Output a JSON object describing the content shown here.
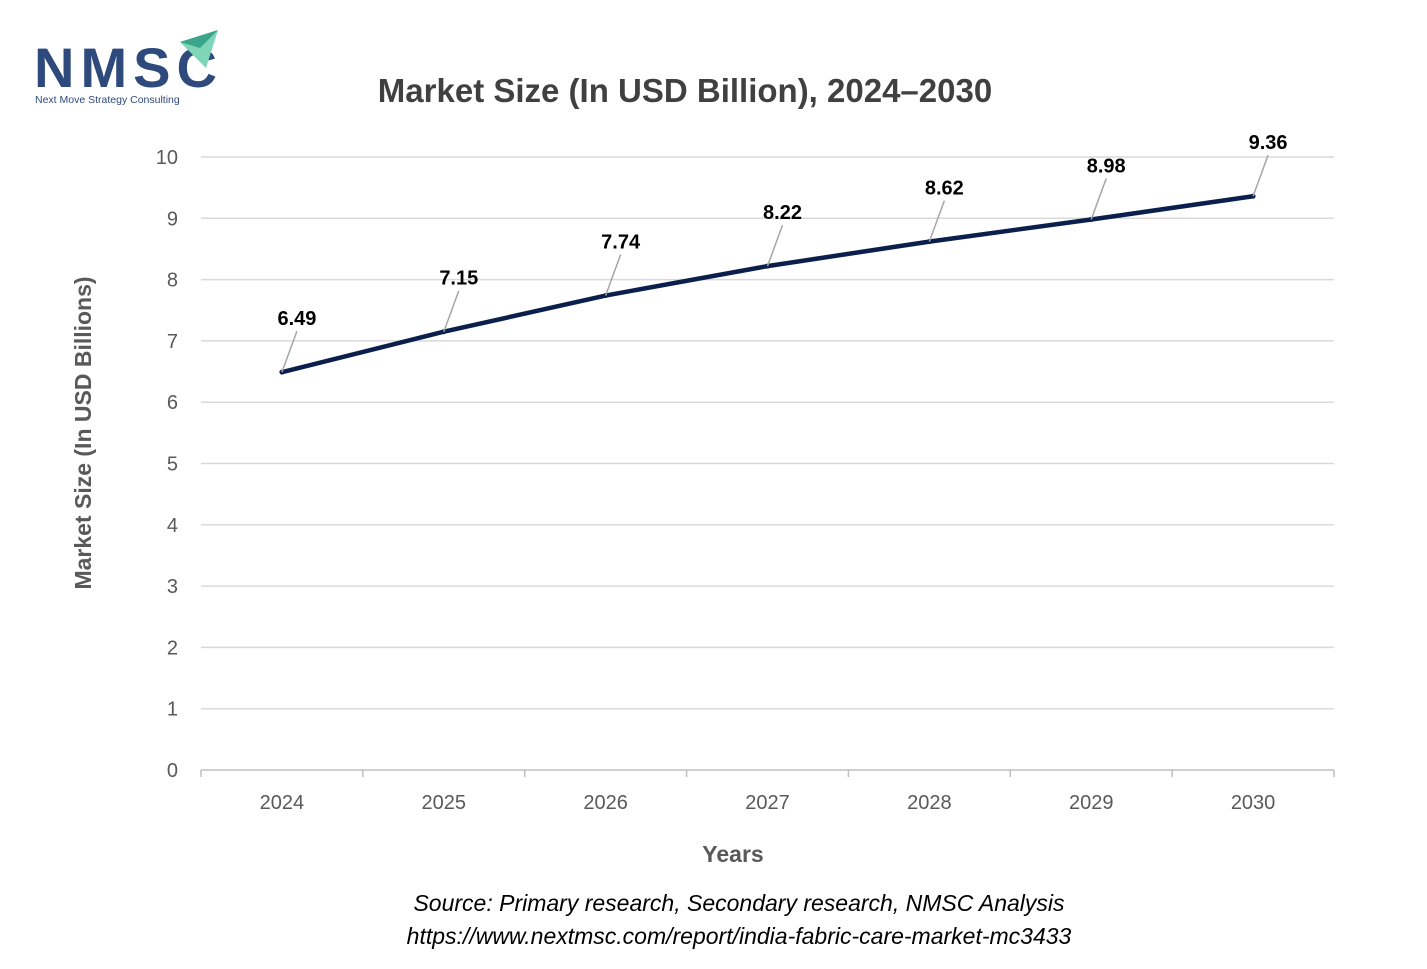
{
  "logo": {
    "text": "NMSC",
    "tagline": "Next Move Strategy Consulting",
    "colors": {
      "text": "#2e4a7d",
      "arrow_light": "#7fd6b6",
      "arrow_dark": "#3aa58a"
    }
  },
  "chart_data": {
    "type": "line",
    "title": "Market Size (In USD Billion), 2024–2030",
    "xlabel": "Years",
    "ylabel": "Market Size (In USD Billions)",
    "categories": [
      "2024",
      "2025",
      "2026",
      "2027",
      "2028",
      "2029",
      "2030"
    ],
    "series": [
      {
        "values": [
          6.49,
          7.15,
          7.74,
          8.22,
          8.62,
          8.98,
          9.36
        ],
        "color": "#0b1f4d"
      }
    ],
    "data_labels": [
      "6.49",
      "7.15",
      "7.74",
      "8.22",
      "8.62",
      "8.98",
      "9.36"
    ],
    "ylim": [
      0,
      10
    ],
    "yticks": [
      "0",
      "1",
      "2",
      "3",
      "4",
      "5",
      "6",
      "7",
      "8",
      "9",
      "10"
    ],
    "grid": "horizontal",
    "legend": "none"
  },
  "source": {
    "line1": "Source: Primary research, Secondary research, NMSC Analysis",
    "line2": "https://www.nextmsc.com/report/india-fabric-care-market-mc3433"
  }
}
